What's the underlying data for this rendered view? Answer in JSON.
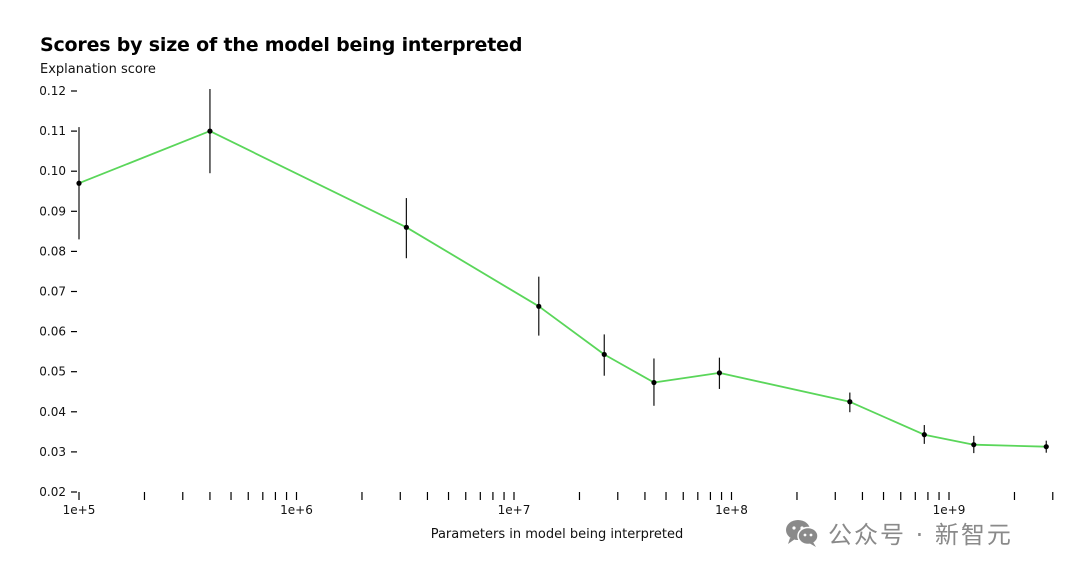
{
  "chart_data": {
    "type": "line",
    "title": "Scores by size of the model being interpreted",
    "ylabel": "Explanation score",
    "xlabel": "Parameters in model being interpreted",
    "x_scale": "log",
    "xlim": [
      100000,
      3500000000
    ],
    "ylim": [
      0.02,
      0.12
    ],
    "y_ticks": [
      "0.12",
      "0.11",
      "0.10",
      "0.09",
      "0.08",
      "0.07",
      "0.06",
      "0.05",
      "0.04",
      "0.03",
      "0.02"
    ],
    "x_tick_labels": [
      "1e+5",
      "1e+6",
      "1e+7",
      "1e+8",
      "1e+9"
    ],
    "grid": false,
    "line_color": "#5ad65a",
    "series": [
      {
        "points": [
          {
            "x": 100000,
            "y": 0.097,
            "low": 0.083,
            "high": 0.111
          },
          {
            "x": 400000,
            "y": 0.11,
            "low": 0.0995,
            "high": 0.1205
          },
          {
            "x": 3200000,
            "y": 0.086,
            "low": 0.0783,
            "high": 0.0933
          },
          {
            "x": 13000000,
            "y": 0.0663,
            "low": 0.059,
            "high": 0.0737
          },
          {
            "x": 26000000,
            "y": 0.0543,
            "low": 0.049,
            "high": 0.0593
          },
          {
            "x": 44000000,
            "y": 0.0473,
            "low": 0.0415,
            "high": 0.0533
          },
          {
            "x": 88000000,
            "y": 0.0497,
            "low": 0.0457,
            "high": 0.0535
          },
          {
            "x": 350000000,
            "y": 0.0425,
            "low": 0.0399,
            "high": 0.0448
          },
          {
            "x": 770000000,
            "y": 0.0343,
            "low": 0.032,
            "high": 0.0367
          },
          {
            "x": 1300000000,
            "y": 0.0318,
            "low": 0.0297,
            "high": 0.034
          },
          {
            "x": 2800000000,
            "y": 0.0313,
            "low": 0.0298,
            "high": 0.0328
          }
        ]
      }
    ]
  },
  "watermark": {
    "text": "公众号 · 新智元",
    "icon": "wechat-icon"
  }
}
